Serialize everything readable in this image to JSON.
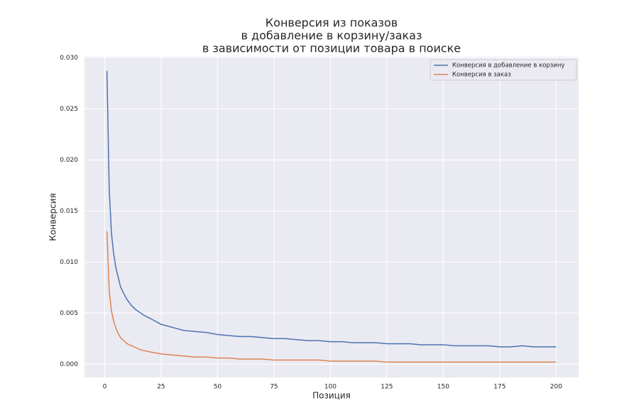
{
  "chart_data": {
    "type": "line",
    "title": [
      "Конверсия из показов",
      "в добавление в корзину/заказ",
      "в зависимости от позиции товара в поиске"
    ],
    "xlabel": "Позиция",
    "ylabel": "Конверсия",
    "x": [
      1,
      2,
      3,
      4,
      5,
      6,
      7,
      8,
      9,
      10,
      12,
      14,
      16,
      18,
      20,
      25,
      30,
      35,
      40,
      45,
      50,
      55,
      60,
      65,
      70,
      75,
      80,
      85,
      90,
      95,
      100,
      105,
      110,
      115,
      120,
      125,
      130,
      135,
      140,
      145,
      150,
      155,
      160,
      165,
      170,
      175,
      180,
      185,
      190,
      195,
      200
    ],
    "series": [
      {
        "name": "Конверсия в добавление в корзину",
        "color": "#4c72b0",
        "values": [
          0.0287,
          0.0172,
          0.0128,
          0.0108,
          0.0094,
          0.0085,
          0.0076,
          0.0071,
          0.0067,
          0.0063,
          0.0057,
          0.0053,
          0.005,
          0.0047,
          0.0045,
          0.0039,
          0.0036,
          0.0033,
          0.0032,
          0.0031,
          0.0029,
          0.0028,
          0.0027,
          0.0027,
          0.0026,
          0.0025,
          0.0025,
          0.0024,
          0.0023,
          0.0023,
          0.0022,
          0.0022,
          0.0021,
          0.0021,
          0.0021,
          0.002,
          0.002,
          0.002,
          0.0019,
          0.0019,
          0.0019,
          0.0018,
          0.0018,
          0.0018,
          0.0018,
          0.0017,
          0.0017,
          0.0018,
          0.0017,
          0.0017,
          0.0017
        ]
      },
      {
        "name": "Конверсия в заказ",
        "color": "#dd8452",
        "values": [
          0.013,
          0.0072,
          0.0052,
          0.0042,
          0.0035,
          0.003,
          0.0026,
          0.0024,
          0.0022,
          0.002,
          0.0018,
          0.0016,
          0.0014,
          0.0013,
          0.0012,
          0.001,
          0.0009,
          0.0008,
          0.0007,
          0.0007,
          0.0006,
          0.0006,
          0.0005,
          0.0005,
          0.0005,
          0.0004,
          0.0004,
          0.0004,
          0.0004,
          0.0004,
          0.0003,
          0.0003,
          0.0003,
          0.0003,
          0.0003,
          0.0002,
          0.0002,
          0.0002,
          0.0002,
          0.0002,
          0.0002,
          0.0002,
          0.0002,
          0.0002,
          0.0002,
          0.0002,
          0.0002,
          0.0002,
          0.0002,
          0.0002,
          0.0002
        ]
      }
    ],
    "xlim": [
      -8.95,
      209.95
    ],
    "ylim": [
      -0.0013,
      0.0301
    ],
    "xticks": [
      0,
      25,
      50,
      75,
      100,
      125,
      150,
      175,
      200
    ],
    "yticks": [
      {
        "value": 0,
        "label": "0.000"
      },
      {
        "value": 0.005,
        "label": "0.005"
      },
      {
        "value": 0.01,
        "label": "0.010"
      },
      {
        "value": 0.015,
        "label": "0.015"
      },
      {
        "value": 0.02,
        "label": "0.020"
      },
      {
        "value": 0.025,
        "label": "0.025"
      },
      {
        "value": 0.03,
        "label": "0.030"
      }
    ],
    "grid": true,
    "legend": "upper right",
    "background": "#eaeaf2"
  }
}
